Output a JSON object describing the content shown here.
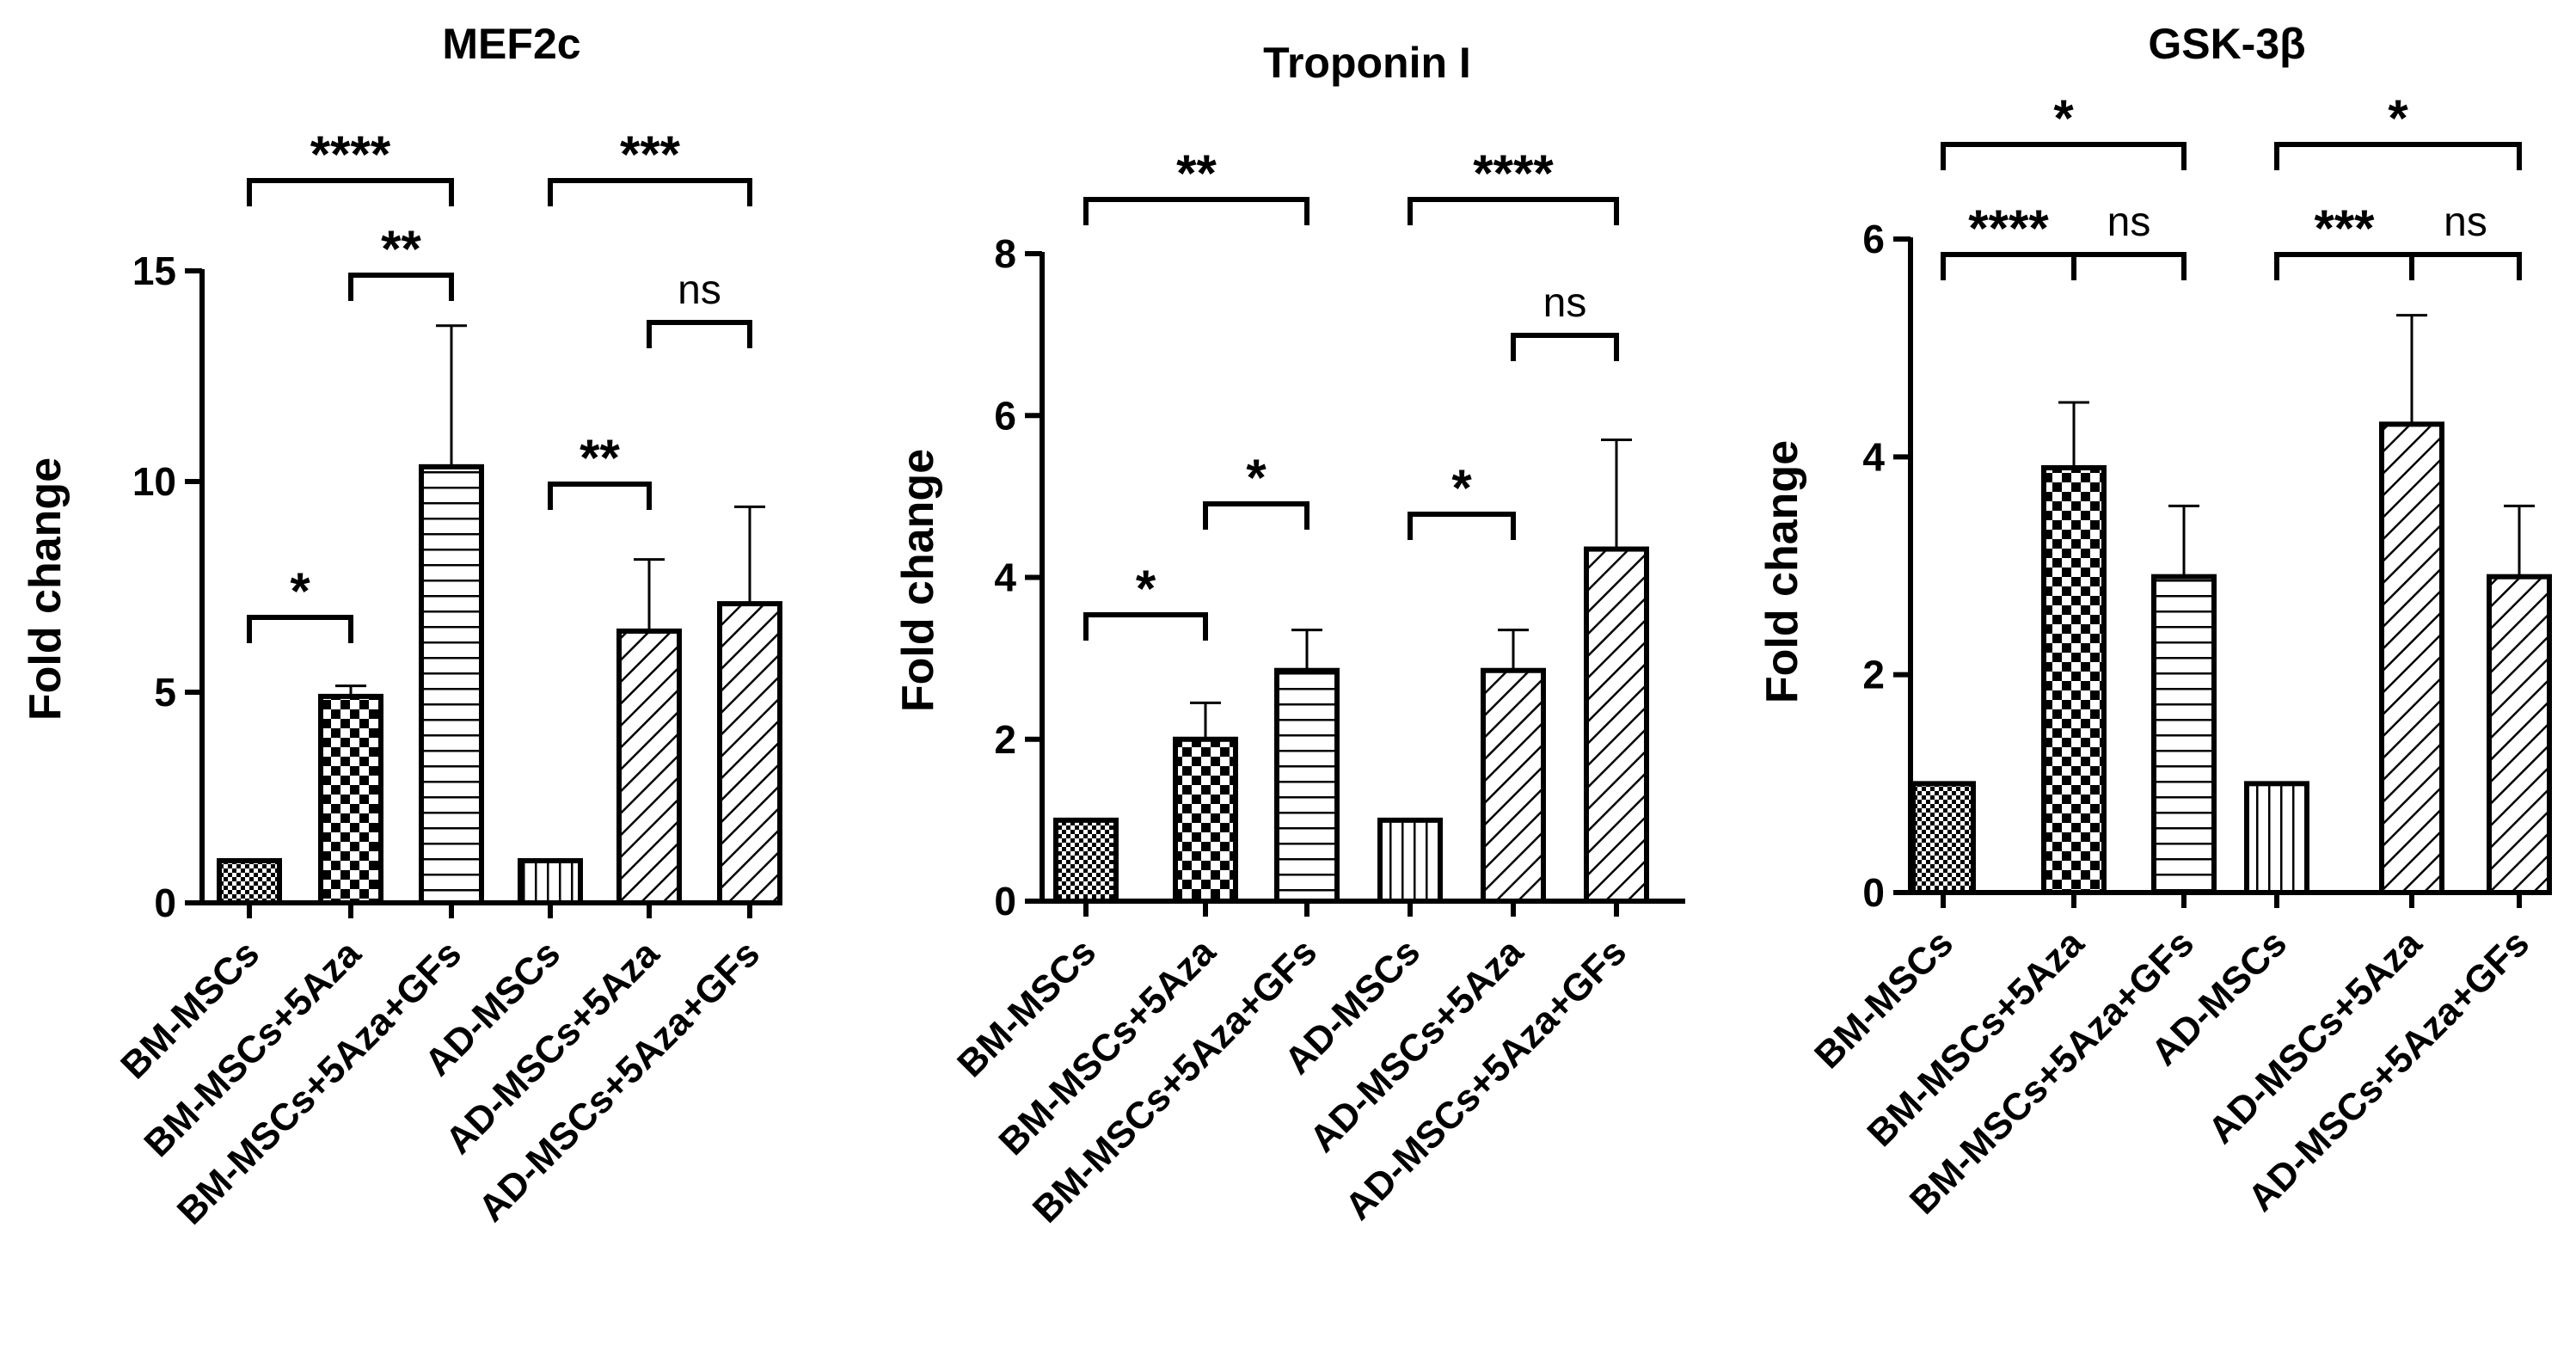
{
  "chart_data": [
    {
      "type": "bar",
      "title": "MEF2c",
      "ylabel": "Fold change",
      "xlabel": "",
      "ylim": [
        0,
        15
      ],
      "yticks": [
        "0",
        "5",
        "10",
        "15"
      ],
      "categories": [
        "BM-MSCs",
        "BM-MSCs+5Aza",
        "BM-MSCs+5Aza+GFs",
        "AD-MSCs",
        "AD-MSCs+5Aza",
        "AD-MSCs+5Aza+GFs"
      ],
      "values": [
        1,
        4.9,
        10.35,
        1,
        6.45,
        7.1
      ],
      "errors": [
        0,
        0.25,
        3.35,
        0,
        1.7,
        2.3
      ],
      "significance": [
        {
          "from": 0,
          "to": 2,
          "label": "****"
        },
        {
          "from": 1,
          "to": 2,
          "label": "**"
        },
        {
          "from": 0,
          "to": 1,
          "label": "*"
        },
        {
          "from": 3,
          "to": 5,
          "label": "***"
        },
        {
          "from": 4,
          "to": 5,
          "label": "ns"
        },
        {
          "from": 3,
          "to": 4,
          "label": "**"
        }
      ]
    },
    {
      "type": "bar",
      "title": "Troponin I",
      "ylabel": "Fold change",
      "xlabel": "",
      "ylim": [
        0,
        8
      ],
      "yticks": [
        "0",
        "2",
        "4",
        "6",
        "8"
      ],
      "categories": [
        "BM-MSCs",
        "BM-MSCs+5Aza",
        "BM-MSCs+5Aza+GFs",
        "AD-MSCs",
        "AD-MSCs+5Aza",
        "AD-MSCs+5Aza+GFs"
      ],
      "values": [
        1,
        2,
        2.85,
        1,
        2.85,
        4.35
      ],
      "errors": [
        0,
        0.45,
        0.5,
        0,
        0.5,
        1.35
      ],
      "significance": [
        {
          "from": 0,
          "to": 2,
          "label": "**"
        },
        {
          "from": 1,
          "to": 2,
          "label": "*"
        },
        {
          "from": 0,
          "to": 1,
          "label": "*"
        },
        {
          "from": 3,
          "to": 5,
          "label": "****"
        },
        {
          "from": 4,
          "to": 5,
          "label": "ns"
        },
        {
          "from": 3,
          "to": 4,
          "label": "*"
        }
      ]
    },
    {
      "type": "bar",
      "title": "GSK-3β",
      "ylabel": "Fold change",
      "xlabel": "",
      "ylim": [
        0,
        6
      ],
      "yticks": [
        "0",
        "2",
        "4",
        "6"
      ],
      "categories": [
        "BM-MSCs",
        "BM-MSCs+5Aza",
        "BM-MSCs+5Aza+GFs",
        "AD-MSCs",
        "AD-MSCs+5Aza",
        "AD-MSCs+5Aza+GFs"
      ],
      "values": [
        1,
        3.9,
        2.9,
        1,
        4.3,
        2.9
      ],
      "errors": [
        0,
        0.6,
        0.65,
        0,
        1,
        0.65
      ],
      "significance": [
        {
          "from": 0,
          "to": 2,
          "label": "*"
        },
        {
          "from": 0,
          "to": 1,
          "label": "****"
        },
        {
          "from": 1,
          "to": 2,
          "label": "ns"
        },
        {
          "from": 3,
          "to": 5,
          "label": "*"
        },
        {
          "from": 3,
          "to": 4,
          "label": "***"
        },
        {
          "from": 4,
          "to": 5,
          "label": "ns"
        }
      ]
    }
  ]
}
